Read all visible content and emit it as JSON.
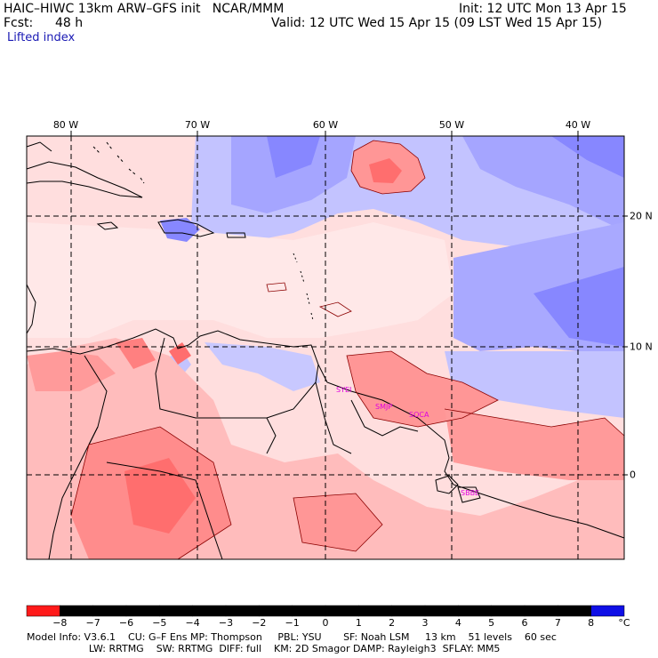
{
  "header": {
    "title": "HAIC–HIWC 13km ARW–GFS init   NCAR/MMM",
    "init": "Init: 12 UTC Mon 13 Apr 15",
    "fcst_label": "Fcst:",
    "fcst_value": "48 h",
    "valid": "Valid: 12 UTC Wed 15 Apr 15 (09 LST Wed 15 Apr 15)",
    "field": "Lifted index"
  },
  "map": {
    "lon_labels": [
      "80 W",
      "70 W",
      "60 W",
      "50 W",
      "40 W"
    ],
    "lat_labels": [
      "20 N",
      "10 N",
      "0"
    ],
    "stations": [
      "SYEI",
      "SMJP",
      "SOCA",
      "SBBE"
    ],
    "colors": {
      "neg8": "#ff1a1a",
      "neg7": "#ff3a3a",
      "neg6": "#ff5a5a",
      "neg5": "#ff7878",
      "neg4": "#ff9696",
      "neg3": "#ffb4b4",
      "neg2": "#ffcdcd",
      "neg1": "#ffe6e6",
      "pos0": "#ffffff",
      "pos1": "#dcdcff",
      "pos2": "#c3c3ff",
      "pos3": "#a5a5ff",
      "pos4": "#8787ff",
      "pos5": "#6969ff",
      "pos6": "#4b4bff",
      "pos7": "#2d2dff",
      "pos8": "#0f0fe6"
    }
  },
  "colorbar": {
    "labels": [
      "−8",
      "−7",
      "−6",
      "−5",
      "−4",
      "−3",
      "−2",
      "−1",
      "0",
      "1",
      "2",
      "3",
      "4",
      "5",
      "6",
      "7",
      "8"
    ],
    "unit": "°C"
  },
  "model_info": {
    "line1": "Model Info: V3.6.1    CU: G–F Ens MP: Thompson     PBL: YSU       SF: Noah LSM     13 km    51 levels    60 sec",
    "line2": "                    LW: RRTMG    SW: RRTMG  DIFF: full    KM: 2D Smagor DAMP: Rayleigh3  SFLAY: MM5"
  }
}
